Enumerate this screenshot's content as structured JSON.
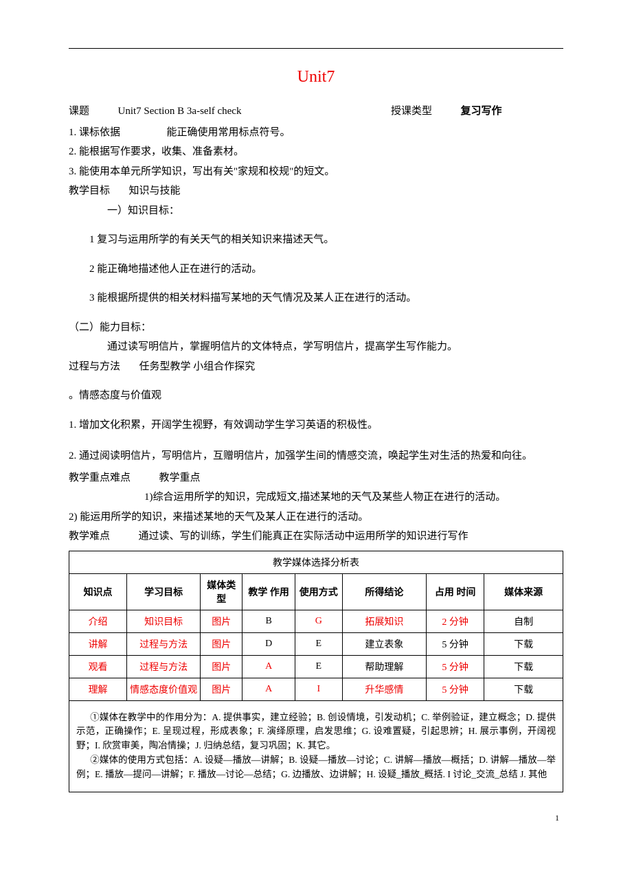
{
  "title": "Unit7",
  "header": {
    "topic_label": "课题",
    "topic_value": "Unit7 Section B 3a-self check",
    "class_type_label": "授课类型",
    "class_type_value": "复习写作"
  },
  "standards": {
    "s1_label": "1. 课标依据",
    "s1_value": "能正确使用常用标点符号。",
    "s2": "2. 能根据写作要求，收集、准备素材。",
    "s3": "3. 能使用本单元所学知识，写出有关\"家规和校规\"的短文。"
  },
  "goals": {
    "label": "教学目标",
    "label2": "知识与技能",
    "knowledge_label": "一）知识目标：",
    "k1": "1 复习与运用所学的有关天气的相关知识来描述天气。",
    "k2": "2 能正确地描述他人正在进行的活动。",
    "k3": "3 能根据所提供的相关材料描写某地的天气情况及某人正在进行的活动。",
    "ability_label": "（二）能力目标：",
    "ability_body": "通过读写明信片，掌握明信片的文体特点，学写明信片，提高学生写作能力。",
    "process_label": "过程与方法",
    "process_body": "任务型教学  小组合作探究",
    "emotion_label": "。情感态度与价值观",
    "e1": "1. 增加文化积累，开阔学生视野，有效调动学生学习英语的积极性。",
    "e2": "2. 通过阅读明信片，写明信片，互赠明信片，加强学生间的情感交流，唤起学生对生活的热爱和向往。"
  },
  "focus": {
    "label": "教学重点难点",
    "sub_label": "教学重点",
    "f1": "1)综合运用所学的知识，完成短文,描述某地的天气及某些人物正在进行的活动。",
    "f2": "2)  能运用所学的知识，来描述某地的天气及某人正在进行的活动。",
    "diff_label": "教学难点",
    "diff_body": "通过读、写的训练，学生们能真正在实际活动中运用所学的知识进行写作"
  },
  "table": {
    "caption": "教学媒体选择分析表",
    "headers": [
      "知识点",
      "学习目标",
      "媒体类型",
      "教学 作用",
      "使用方式",
      "所得结论",
      "占用 时间",
      "媒体来源"
    ],
    "rows": [
      {
        "cells": [
          "介绍",
          "知识目标",
          "图片",
          "B",
          "G",
          "拓展知识",
          "2 分钟",
          "自制"
        ],
        "red": [
          true,
          true,
          true,
          false,
          true,
          true,
          true,
          false
        ]
      },
      {
        "cells": [
          "讲解",
          "过程与方法",
          "图片",
          "D",
          "E",
          "建立表象",
          "5 分钟",
          "下载"
        ],
        "red": [
          true,
          true,
          true,
          false,
          false,
          false,
          false,
          false
        ]
      },
      {
        "cells": [
          "观看",
          "过程与方法",
          "图片",
          "A",
          "E",
          "帮助理解",
          "5 分钟",
          "下载"
        ],
        "red": [
          true,
          true,
          true,
          true,
          false,
          false,
          true,
          false
        ]
      },
      {
        "cells": [
          "理解",
          "情感态度价值观",
          "图片",
          "A",
          "I",
          "升华感情",
          "5 分钟",
          "下载"
        ],
        "red": [
          true,
          true,
          true,
          true,
          true,
          true,
          true,
          false
        ]
      }
    ],
    "col_widths": [
      "11%",
      "14%",
      "8%",
      "10%",
      "9%",
      "16%",
      "11%",
      "15%"
    ]
  },
  "footnote": {
    "p1": "①媒体在教学中的作用分为：A. 提供事实，建立经验；B. 创设情境，引发动机；C. 举例验证，建立概念；D. 提供示范，正确操作；E. 呈现过程，形成表象；F. 演绎原理，启发思维；G. 设难置疑，引起思辨；H. 展示事例，开阔视野；I. 欣赏审美，陶冶情操；J. 归纳总结，复习巩固；K. 其它。",
    "p2": "②媒体的使用方式包括：A. 设疑—播放—讲解；B. 设疑—播放—讨论；C. 讲解—播放—概括；D. 讲解—播放—举例；E. 播放—提问—讲解；F. 播放—讨论—总结；G. 边播放、边讲解；H. 设疑_播放_概括. I 讨论_交流_总结 J. 其他"
  },
  "page_number": "1"
}
